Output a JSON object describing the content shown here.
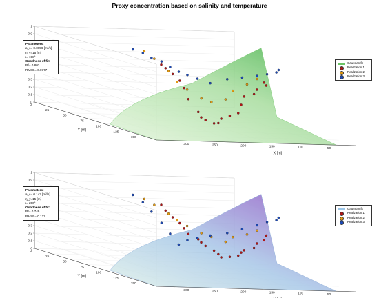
{
  "figure_title": "Proxy concentration based on salinity and temperature",
  "colors": {
    "realization_1": "#b01515",
    "realization_2": "#e39a12",
    "realization_3": "#1b49b8",
    "surface_top_green": "#4fb94a",
    "surface_top_low": "#e4f6dc",
    "surface_bottom_high": "#9a5ccb",
    "surface_bottom_low": "#cfe7f4"
  },
  "panels": [
    {
      "zlabel": "C_s^a",
      "xlabel": "X [m]",
      "ylabel": "Y [m]",
      "params": {
        "heading": "Parameters:",
        "line1": "a_c= 0.0656 [m²/s]",
        "line2": "η_y=15 [m]",
        "line3": "ι= 198°",
        "fit_heading": "Goodness of fit:",
        "fit1": "R²= 0.803",
        "fit2": "RMSE= 0.0777"
      },
      "legend": [
        "Gaussian fit",
        "Realization 1",
        "Realization 2",
        "Realization 3"
      ],
      "z_ticks": [
        "0",
        "0.1",
        "0.2",
        "0.3",
        "0.4",
        "0.5",
        "0.6",
        "0.7",
        "0.8",
        "0.9",
        "1"
      ],
      "y_ticks": [
        "0",
        "25",
        "50",
        "75",
        "100",
        "125",
        "150"
      ],
      "x_ticks": [
        "300",
        "250",
        "200",
        "150",
        "100",
        "50"
      ]
    },
    {
      "zlabel": "C_s^a",
      "xlabel": "X [m]",
      "ylabel": "Y [m]",
      "params": {
        "heading": "Parameters:",
        "line1": "a_c= 0.143 [m²/s]",
        "line2": "η_y=15 [m]",
        "line3": "ι= 200°",
        "fit_heading": "Goodness of fit:",
        "fit1": "R²= 0.749",
        "fit2": "RMSE= 0.123"
      },
      "legend": [
        "Gaussian fit",
        "Realization 1",
        "Realization 2",
        "Realization 3"
      ],
      "z_ticks": [
        "0",
        "0.1",
        "0.2",
        "0.3",
        "0.4",
        "0.5",
        "0.6",
        "0.7",
        "0.8",
        "0.9",
        "1"
      ],
      "y_ticks": [
        "0",
        "25",
        "50",
        "75",
        "100",
        "125",
        "150"
      ],
      "x_ticks": [
        "300",
        "250",
        "200",
        "150",
        "100",
        "50"
      ]
    }
  ],
  "chart_data": [
    {
      "type": "scatter",
      "title": "Proxy concentration based on salinity and temperature",
      "xlabel": "X [m]",
      "ylabel": "Y [m]",
      "zlabel": "C_s^a",
      "xlim": [
        0,
        350
      ],
      "ylim": [
        0,
        175
      ],
      "zlim": [
        0,
        1
      ],
      "surface": "Gaussian fit",
      "series": [
        {
          "name": "Realization 1",
          "points": [
            [
              290,
              95,
              0.55
            ],
            [
              280,
              100,
              0.6
            ],
            [
              270,
              98,
              0.5
            ],
            [
              260,
              102,
              0.45
            ],
            [
              250,
              96,
              0.4
            ],
            [
              240,
              100,
              0.3
            ],
            [
              230,
              104,
              0.2
            ],
            [
              220,
              100,
              0.15
            ],
            [
              210,
              96,
              0.1
            ],
            [
              200,
              100,
              0.05
            ],
            [
              190,
              102,
              0.05
            ],
            [
              180,
              98,
              0.08
            ],
            [
              170,
              100,
              0.12
            ],
            [
              160,
              104,
              0.2
            ],
            [
              150,
              98,
              0.35
            ],
            [
              140,
              100,
              0.5
            ],
            [
              130,
              102,
              0.6
            ],
            [
              120,
              100,
              0.68
            ],
            [
              110,
              98,
              0.75
            ],
            [
              100,
              100,
              0.8
            ]
          ]
        },
        {
          "name": "Realization 2",
          "points": [
            [
              280,
              90,
              0.62
            ],
            [
              260,
              92,
              0.55
            ],
            [
              240,
              88,
              0.45
            ],
            [
              220,
              94,
              0.35
            ],
            [
              200,
              90,
              0.3
            ],
            [
              180,
              92,
              0.35
            ],
            [
              160,
              88,
              0.45
            ],
            [
              140,
              90,
              0.55
            ],
            [
              120,
              94,
              0.7
            ],
            [
              100,
              90,
              0.85
            ],
            [
              80,
              92,
              0.95
            ]
          ]
        },
        {
          "name": "Realization 3",
          "points": [
            [
              330,
              80,
              0.72
            ],
            [
              320,
              85,
              0.7
            ],
            [
              300,
              88,
              0.68
            ],
            [
              280,
              90,
              0.66
            ],
            [
              260,
              85,
              0.62
            ],
            [
              240,
              80,
              0.58
            ],
            [
              220,
              72,
              0.5
            ],
            [
              200,
              70,
              0.55
            ],
            [
              180,
              72,
              0.6
            ],
            [
              160,
              76,
              0.65
            ],
            [
              140,
              80,
              0.72
            ],
            [
              120,
              84,
              0.8
            ],
            [
              100,
              86,
              0.85
            ],
            [
              80,
              90,
              0.92
            ],
            [
              60,
              92,
              0.97
            ]
          ]
        }
      ]
    },
    {
      "type": "scatter",
      "title": "",
      "xlabel": "X [m]",
      "ylabel": "Y [m]",
      "zlabel": "C_s^a",
      "xlim": [
        0,
        350
      ],
      "ylim": [
        0,
        175
      ],
      "zlim": [
        0,
        1
      ],
      "surface": "Gaussian fit",
      "series": [
        {
          "name": "Realization 1",
          "points": [
            [
              290,
              95,
              0.5
            ],
            [
              280,
              100,
              0.45
            ],
            [
              270,
              98,
              0.4
            ],
            [
              260,
              102,
              0.35
            ],
            [
              250,
              96,
              0.3
            ],
            [
              240,
              100,
              0.28
            ],
            [
              230,
              104,
              0.25
            ],
            [
              220,
              100,
              0.22
            ],
            [
              210,
              96,
              0.2
            ],
            [
              200,
              100,
              0.25
            ],
            [
              190,
              102,
              0.3
            ],
            [
              180,
              98,
              0.35
            ],
            [
              170,
              100,
              0.4
            ],
            [
              160,
              104,
              0.45
            ],
            [
              150,
              98,
              0.5
            ],
            [
              140,
              100,
              0.58
            ],
            [
              130,
              102,
              0.65
            ],
            [
              120,
              100,
              0.72
            ],
            [
              110,
              98,
              0.8
            ],
            [
              100,
              100,
              0.88
            ]
          ]
        },
        {
          "name": "Realization 2",
          "points": [
            [
              280,
              90,
              0.55
            ],
            [
              260,
              92,
              0.5
            ],
            [
              240,
              88,
              0.45
            ],
            [
              220,
              94,
              0.4
            ],
            [
              200,
              90,
              0.45
            ],
            [
              180,
              92,
              0.5
            ],
            [
              160,
              88,
              0.58
            ],
            [
              140,
              90,
              0.66
            ],
            [
              120,
              94,
              0.75
            ],
            [
              100,
              90,
              0.85
            ],
            [
              80,
              92,
              0.93
            ]
          ]
        },
        {
          "name": "Realization 3",
          "points": [
            [
              330,
              80,
              0.7
            ],
            [
              320,
              85,
              0.68
            ],
            [
              300,
              88,
              0.66
            ],
            [
              280,
              90,
              0.62
            ],
            [
              260,
              85,
              0.55
            ],
            [
              240,
              80,
              0.48
            ],
            [
              220,
              72,
              0.42
            ],
            [
              200,
              70,
              0.38
            ],
            [
              180,
              72,
              0.35
            ],
            [
              160,
              76,
              0.3
            ],
            [
              140,
              80,
              0.45
            ],
            [
              120,
              84,
              0.6
            ],
            [
              100,
              86,
              0.75
            ],
            [
              80,
              90,
              0.88
            ],
            [
              60,
              92,
              0.98
            ]
          ]
        }
      ]
    }
  ]
}
